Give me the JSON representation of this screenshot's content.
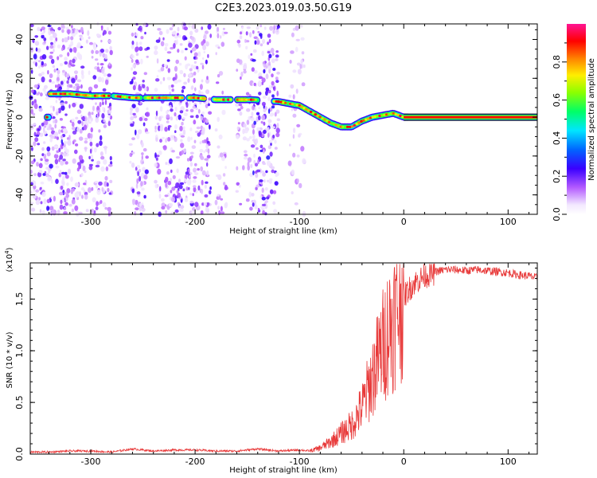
{
  "page": {
    "title": "C2E3.2023.019.03.50.G19"
  },
  "chart_data": [
    {
      "type": "heatmap",
      "title": "C2E3.2023.019.03.50.G19",
      "xlabel": "Height of straight line (km)",
      "ylabel": "Frequency (Hz)",
      "xlim": [
        -358,
        128
      ],
      "ylim": [
        -50,
        48
      ],
      "x_ticks": [
        -300,
        -200,
        -100,
        0,
        100
      ],
      "x_tick_labels": [
        "-300",
        "-200",
        "-100",
        "0",
        "100"
      ],
      "y_ticks": [
        -40,
        -20,
        0,
        20,
        40
      ],
      "y_tick_labels": [
        "-40",
        "-20",
        "0",
        "20",
        "40"
      ],
      "colorbar": {
        "label": "Normalized spectral amplitude",
        "range": [
          0,
          1
        ],
        "ticks": [
          0.0,
          0.2,
          0.4,
          0.6,
          0.8
        ],
        "tick_labels": [
          "0.0",
          "0.2",
          "0.4",
          "0.6",
          "0.8"
        ],
        "colormap": "rainbow (white→purple→blue→cyan→green→yellow→red→magenta)"
      },
      "ridge": {
        "x": [
          -340,
          -320,
          -300,
          -280,
          -260,
          -240,
          -220,
          -200,
          -180,
          -160,
          -145,
          -120,
          -100,
          -90,
          -80,
          -70,
          -60,
          -50,
          -40,
          -30,
          -20,
          -10,
          0,
          50,
          128
        ],
        "frequency": [
          12,
          12,
          11,
          11,
          10,
          10,
          10,
          10,
          9,
          9,
          9,
          8,
          6,
          3,
          0,
          -3,
          -5,
          -5,
          -2,
          0,
          1,
          2,
          0,
          0,
          0
        ]
      }
    },
    {
      "type": "line",
      "xlabel": "Height of straight line (km)",
      "ylabel": "SNR (10 * v/v)",
      "y_multiplier_label": "(x10",
      "y_multiplier_exp": "4",
      "xlim": [
        -358,
        128
      ],
      "ylim": [
        0,
        1.85
      ],
      "x_ticks": [
        -300,
        -200,
        -100,
        0,
        100
      ],
      "x_tick_labels": [
        "-300",
        "-200",
        "-100",
        "0",
        "100"
      ],
      "y_ticks": [
        0.0,
        0.5,
        1.0,
        1.5
      ],
      "y_tick_labels": [
        "0.0",
        "0.5",
        "1.0",
        "1.5"
      ],
      "line_color": "#e83a3a",
      "series": [
        {
          "x": [
            -358,
            -340,
            -320,
            -300,
            -280,
            -260,
            -240,
            -220,
            -200,
            -180,
            -160,
            -140,
            -120,
            -100,
            -90,
            -80,
            -70,
            -60,
            -50,
            -40,
            -35,
            -30,
            -25,
            -20,
            -15,
            -10,
            -5,
            0,
            5,
            10,
            20,
            30,
            40,
            50,
            60,
            70,
            80,
            90,
            100,
            110,
            120,
            128
          ],
          "y": [
            0.02,
            0.02,
            0.03,
            0.03,
            0.02,
            0.05,
            0.03,
            0.04,
            0.04,
            0.03,
            0.03,
            0.05,
            0.03,
            0.04,
            0.03,
            0.06,
            0.12,
            0.2,
            0.28,
            0.45,
            0.6,
            0.75,
            0.9,
            1.05,
            1.2,
            1.3,
            1.45,
            1.55,
            1.62,
            1.68,
            1.75,
            1.78,
            1.8,
            1.8,
            1.79,
            1.8,
            1.79,
            1.78,
            1.77,
            1.75,
            1.74,
            1.72
          ]
        }
      ]
    }
  ]
}
